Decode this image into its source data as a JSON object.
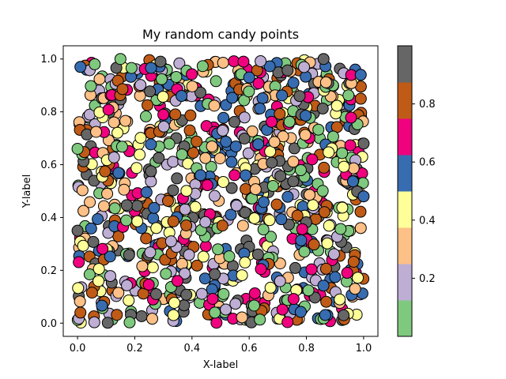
{
  "chart_data": {
    "type": "scatter",
    "title": "My random candy points",
    "xlabel": "X-label",
    "ylabel": "Y-label",
    "xlim": [
      -0.05,
      1.05
    ],
    "ylim": [
      -0.05,
      1.05
    ],
    "x_ticks": [
      "0.0",
      "0.2",
      "0.4",
      "0.6",
      "0.8",
      "1.0"
    ],
    "y_ticks": [
      "0.0",
      "0.2",
      "0.4",
      "0.6",
      "0.8",
      "1.0"
    ],
    "grid": false,
    "colormap": "Accent",
    "point_count": 1000,
    "marker_edge_color": "#000000",
    "colorbar": {
      "range": [
        0,
        1
      ],
      "ticks": [
        "0.2",
        "0.4",
        "0.6",
        "0.8"
      ],
      "colors": [
        "#7fc97f",
        "#beaed4",
        "#fdc086",
        "#ffff99",
        "#386cb0",
        "#f0027f",
        "#bf5b17",
        "#666666"
      ]
    },
    "points_sample": [
      {
        "x": 0.01,
        "y": 0.97,
        "c": 0.55
      },
      {
        "x": 0.06,
        "y": 0.98,
        "c": 0.05
      },
      {
        "x": 0.15,
        "y": 1.0,
        "c": 0.05
      },
      {
        "x": 0.29,
        "y": 0.99,
        "c": 0.95
      },
      {
        "x": 0.58,
        "y": 0.99,
        "c": 0.7
      },
      {
        "x": 0.86,
        "y": 1.0,
        "c": 0.95
      },
      {
        "x": 0.99,
        "y": 0.94,
        "c": 0.55
      },
      {
        "x": 1.0,
        "y": 0.68,
        "c": 0.95
      },
      {
        "x": 1.0,
        "y": 0.48,
        "c": 0.55
      },
      {
        "x": 0.99,
        "y": 0.36,
        "c": 0.35
      },
      {
        "x": 0.97,
        "y": 0.13,
        "c": 0.35
      },
      {
        "x": 0.93,
        "y": 0.03,
        "c": 0.95
      },
      {
        "x": 0.48,
        "y": 0.04,
        "c": 0.05
      },
      {
        "x": 0.01,
        "y": 0.04,
        "c": 0.75
      },
      {
        "x": 0.0,
        "y": 0.35,
        "c": 0.95
      },
      {
        "x": 0.0,
        "y": 0.66,
        "c": 0.05
      },
      {
        "x": 0.43,
        "y": 0.56,
        "c": 0.55
      },
      {
        "x": 0.6,
        "y": 0.93,
        "c": 0.55
      },
      {
        "x": 0.82,
        "y": 0.62,
        "c": 0.65
      },
      {
        "x": 0.38,
        "y": 0.37,
        "c": 0.75
      }
    ]
  }
}
